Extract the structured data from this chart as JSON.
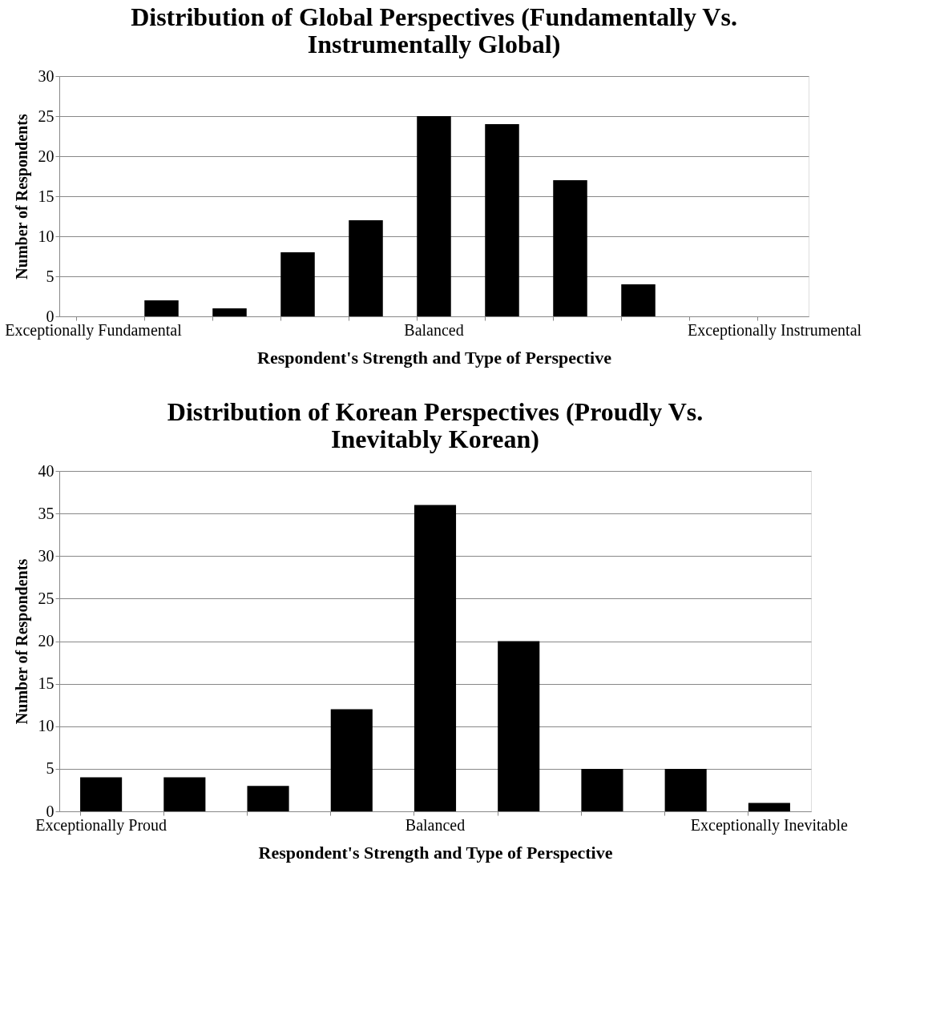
{
  "chart_data": [
    {
      "type": "bar",
      "title": "Distribution of Global Perspectives (Fundamentally Vs. Instrumentally Global)",
      "xlabel": "Respondent's Strength and Type of Perspective",
      "ylabel": "Number of Respondents",
      "categories": [
        "Exceptionally Fundamental",
        null,
        null,
        null,
        null,
        "Balanced",
        null,
        null,
        null,
        null,
        "Exceptionally Instrumental"
      ],
      "values": [
        0,
        2,
        1,
        8,
        12,
        25,
        24,
        17,
        4,
        0,
        0
      ],
      "color": "#000000",
      "ylim": [
        0,
        30
      ],
      "yticks": [
        0,
        5,
        10,
        15,
        20,
        25,
        30
      ],
      "grid": "y",
      "legend": false
    },
    {
      "type": "bar",
      "title": "Distribution of Korean Perspectives (Proudly Vs. Inevitably Korean)",
      "xlabel": "Respondent's Strength and Type of Perspective",
      "ylabel": "Number of Respondents",
      "categories": [
        "Exceptionally Proud",
        null,
        null,
        null,
        "Balanced",
        null,
        null,
        null,
        "Exceptionally Inevitable"
      ],
      "values": [
        4,
        4,
        3,
        12,
        36,
        20,
        5,
        5,
        1
      ],
      "color": "#000000",
      "ylim": [
        0,
        40
      ],
      "yticks": [
        0,
        5,
        10,
        15,
        20,
        25,
        30,
        35,
        40
      ],
      "grid": "y",
      "legend": false
    }
  ]
}
